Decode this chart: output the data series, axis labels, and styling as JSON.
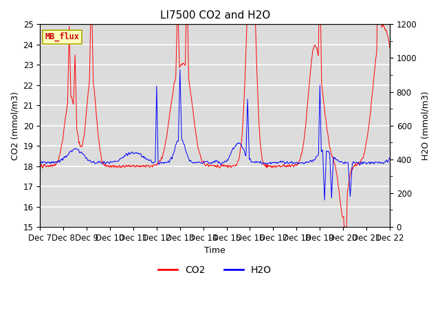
{
  "title": "LI7500 CO2 and H2O",
  "xlabel": "Time",
  "ylabel_left": "CO2 (mmol/m3)",
  "ylabel_right": "H2O (mmol/m3)",
  "ylim_left": [
    15.0,
    25.0
  ],
  "ylim_right": [
    0,
    1200
  ],
  "xtick_labels": [
    "Dec 7",
    "Dec 8",
    "Dec 9",
    "Dec 10",
    "Dec 11",
    "Dec 12",
    "Dec 13",
    "Dec 14",
    "Dec 15",
    "Dec 16",
    "Dec 17",
    "Dec 18",
    "Dec 19",
    "Dec 20",
    "Dec 21",
    "Dec 22"
  ],
  "co2_color": "#FF0000",
  "h2o_color": "#0000FF",
  "background_color": "#DCDCDC",
  "legend_label": "MB_flux",
  "legend_bg": "#FFFFC0",
  "legend_border": "#AAAA00",
  "grid_color": "#FFFFFF",
  "title_fontsize": 11,
  "axis_fontsize": 9,
  "tick_fontsize": 8.5
}
